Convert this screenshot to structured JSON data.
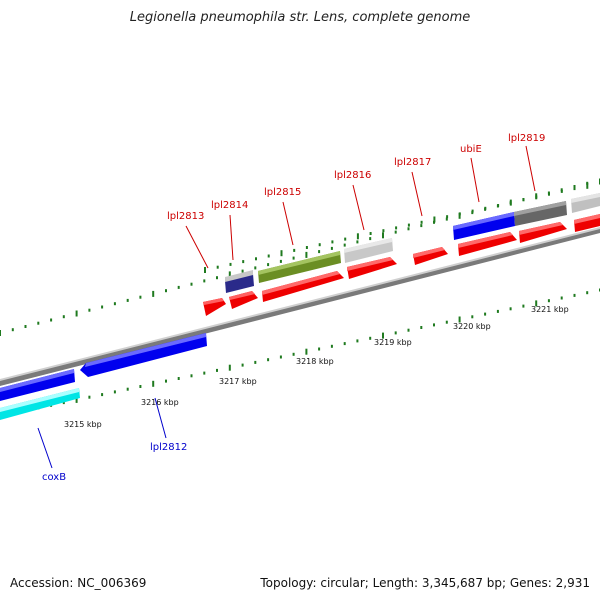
{
  "title": "Legionella pneumophila str. Lens, complete genome",
  "footer": {
    "accession": "Accession: NC_006369",
    "summary": "Topology: circular; Length: 3,345,687 bp; Genes: 2,931"
  },
  "colors": {
    "forward_cds": "#ff0000",
    "reverse_cds": "#0000ff",
    "reverse_label": "#0000cc",
    "forward_label": "#cc0000",
    "tick": "#1f7a1f",
    "backbone": "#888888",
    "olive": "#6b8e23",
    "cyan": "#00ffff",
    "gray_light": "#c0c0c0",
    "gray_dark": "#666666",
    "navy": "#1c1c7a"
  },
  "scale_labels": [
    "3215 kbp",
    "3216 kbp",
    "3217 kbp",
    "3218 kbp",
    "3219 kbp",
    "3220 kbp",
    "3221 kbp"
  ],
  "gene_labels_forward": [
    "lpl2813",
    "lpl2814",
    "lpl2815",
    "lpl2816",
    "lpl2817",
    "ubiE",
    "lpl2819"
  ],
  "gene_labels_reverse": [
    "lpl2812",
    "coxB"
  ]
}
